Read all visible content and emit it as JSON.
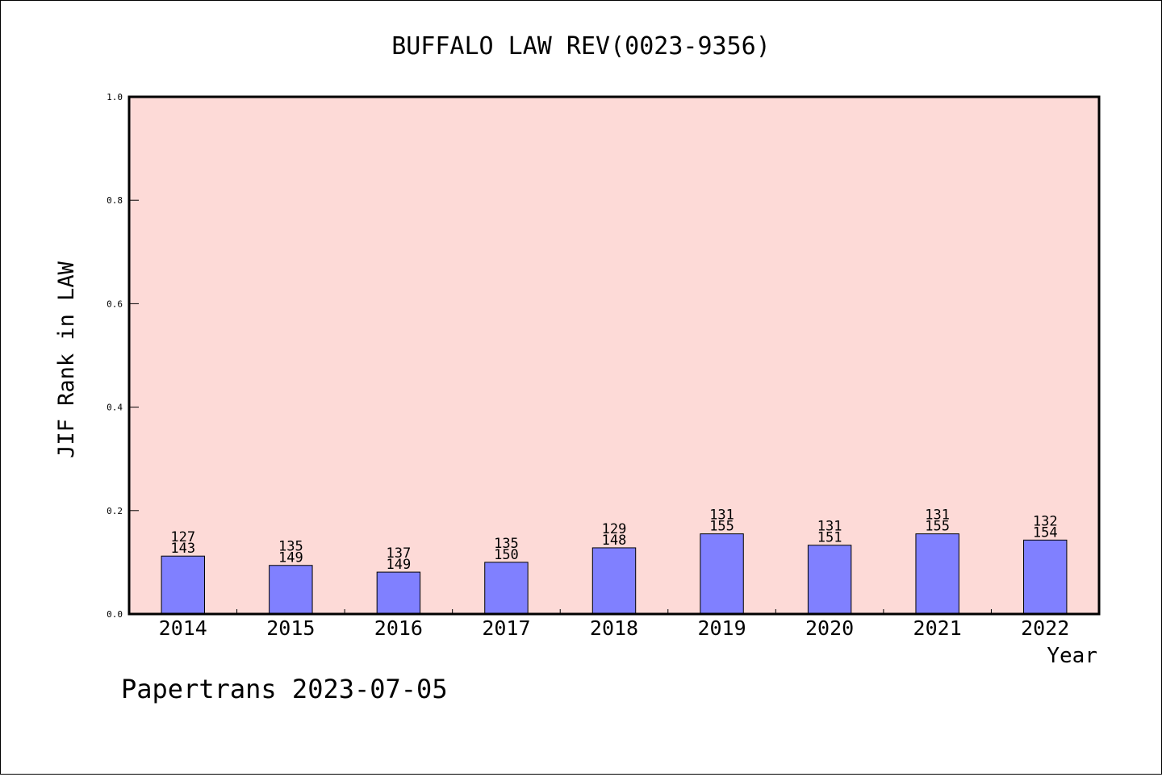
{
  "chart_data": {
    "type": "bar",
    "title": "BUFFALO LAW REV(0023-9356)",
    "xlabel": "Year",
    "ylabel": "JIF Rank in LAW",
    "footer": "Papertrans 2023-07-05",
    "ylim": [
      0,
      1.0
    ],
    "yticks": [
      "0.0",
      "0.2",
      "0.4",
      "0.6",
      "0.8",
      "1.0"
    ],
    "categories": [
      "2014",
      "2015",
      "2016",
      "2017",
      "2018",
      "2019",
      "2020",
      "2021",
      "2022"
    ],
    "ranks": [
      127,
      135,
      137,
      135,
      129,
      131,
      131,
      131,
      132
    ],
    "totals": [
      143,
      149,
      149,
      150,
      148,
      155,
      151,
      155,
      154
    ],
    "values": [
      0.112,
      0.094,
      0.081,
      0.1,
      0.128,
      0.155,
      0.133,
      0.155,
      0.143
    ],
    "grid": false,
    "legend": "none",
    "colors": {
      "plot_background": "#fddad7",
      "bar_fill": "#8080ff",
      "bar_stroke": "#000000",
      "axis": "#000000"
    }
  }
}
